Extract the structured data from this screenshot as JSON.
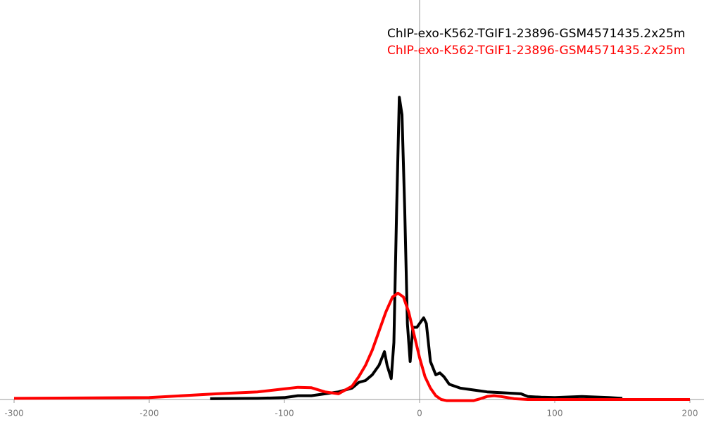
{
  "chart_data": {
    "type": "line",
    "xlim": [
      -300,
      200
    ],
    "xticks": [
      -300,
      -200,
      -100,
      0,
      100,
      200
    ],
    "ylim": [
      -1,
      100
    ],
    "series": [
      {
        "name": "ChIP-exo-K562-TGIF1-23896-GSM4571435.2x25m",
        "color": "#000000",
        "x": [
          -155,
          -120,
          -100,
          -90,
          -80,
          -70,
          -60,
          -50,
          -45,
          -40,
          -35,
          -30,
          -26,
          -24,
          -21,
          -19,
          -17,
          -15,
          -13,
          -11,
          -9,
          -7,
          -5,
          -2,
          0,
          3,
          5,
          8,
          12,
          15,
          18,
          22,
          30,
          40,
          50,
          60,
          75,
          80,
          90,
          100,
          120,
          140,
          150
        ],
        "values": [
          0.2,
          0.3,
          0.5,
          1,
          1,
          1.5,
          2,
          3,
          4.5,
          5,
          6.5,
          9,
          12.6,
          9,
          5.5,
          15,
          50,
          79.6,
          75,
          50,
          20,
          10,
          19,
          19,
          20,
          21.5,
          20,
          10,
          6.5,
          7,
          6,
          4,
          3,
          2.5,
          2,
          1.8,
          1.5,
          0.8,
          0.6,
          0.5,
          0.8,
          0.5,
          0.3
        ]
      },
      {
        "name": "ChIP-exo-K562-TGIF1-23896-GSM4571435.2x25m",
        "color": "#ff0000",
        "x": [
          -300,
          -200,
          -150,
          -120,
          -100,
          -90,
          -80,
          -70,
          -60,
          -50,
          -45,
          -40,
          -35,
          -30,
          -25,
          -20,
          -16,
          -12,
          -8,
          -4,
          0,
          4,
          8,
          12,
          16,
          20,
          40,
          45,
          50,
          55,
          60,
          70,
          80,
          100,
          200
        ],
        "values": [
          0.3,
          0.5,
          1.5,
          2,
          2.8,
          3.2,
          3.1,
          2,
          1.5,
          3.5,
          6,
          9,
          13,
          18,
          23,
          27,
          28,
          27,
          23,
          17,
          11,
          6,
          3,
          1,
          0,
          -0.3,
          -0.3,
          0.2,
          0.8,
          1,
          0.8,
          0.2,
          0,
          0,
          0
        ]
      }
    ]
  }
}
